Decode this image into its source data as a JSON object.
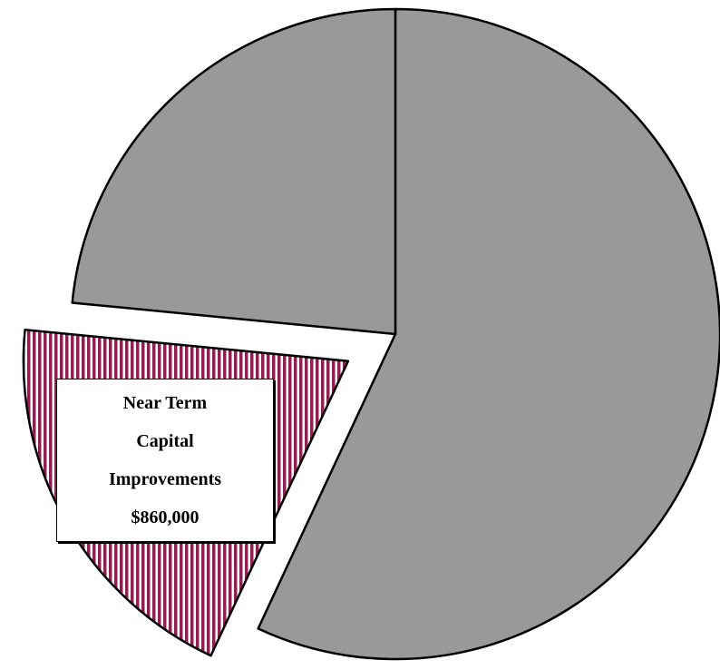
{
  "chart_data": {
    "type": "pie",
    "categories": [
      null,
      "Near Term Capital Improvements",
      null
    ],
    "values": [
      2500000,
      860000,
      1030000
    ],
    "value_labels": [
      null,
      "$860,000",
      null
    ],
    "colors": [
      "#999999",
      "#8b2252",
      "#999999"
    ],
    "patterns": [
      null,
      "vertical-stripes",
      null
    ],
    "exploded": [
      false,
      true,
      false
    ]
  }
}
